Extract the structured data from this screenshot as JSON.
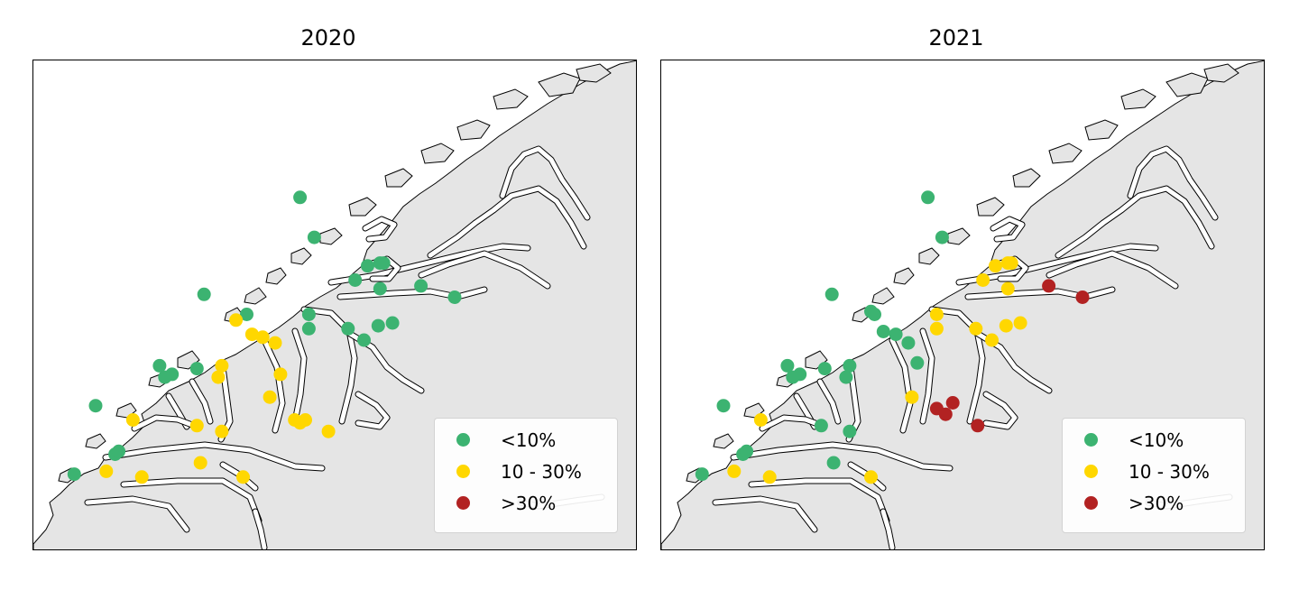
{
  "panels": [
    {
      "title": "2020",
      "sites": [
        {
          "lon": 6.4,
          "lat": 63.07,
          "class": "lt10"
        },
        {
          "lon": 6.48,
          "lat": 62.93,
          "class": "lt10"
        },
        {
          "lon": 6.78,
          "lat": 62.83,
          "class": "lt10"
        },
        {
          "lon": 6.85,
          "lat": 62.84,
          "class": "lt10"
        },
        {
          "lon": 6.87,
          "lat": 62.84,
          "class": "lt10"
        },
        {
          "lon": 6.71,
          "lat": 62.78,
          "class": "lt10"
        },
        {
          "lon": 6.85,
          "lat": 62.75,
          "class": "lt10"
        },
        {
          "lon": 7.08,
          "lat": 62.76,
          "class": "lt10"
        },
        {
          "lon": 7.27,
          "lat": 62.72,
          "class": "lt10"
        },
        {
          "lon": 5.86,
          "lat": 62.73,
          "class": "lt10"
        },
        {
          "lon": 6.1,
          "lat": 62.66,
          "class": "lt10"
        },
        {
          "lon": 6.45,
          "lat": 62.66,
          "class": "lt10"
        },
        {
          "lon": 6.45,
          "lat": 62.61,
          "class": "lt10"
        },
        {
          "lon": 6.67,
          "lat": 62.61,
          "class": "lt10"
        },
        {
          "lon": 6.76,
          "lat": 62.57,
          "class": "lt10"
        },
        {
          "lon": 6.84,
          "lat": 62.62,
          "class": "lt10"
        },
        {
          "lon": 6.92,
          "lat": 62.63,
          "class": "lt10"
        },
        {
          "lon": 5.61,
          "lat": 62.48,
          "class": "lt10"
        },
        {
          "lon": 5.68,
          "lat": 62.45,
          "class": "lt10"
        },
        {
          "lon": 5.82,
          "lat": 62.47,
          "class": "lt10"
        },
        {
          "lon": 5.64,
          "lat": 62.44,
          "class": "lt10"
        },
        {
          "lon": 5.25,
          "lat": 62.34,
          "class": "lt10"
        },
        {
          "lon": 5.36,
          "lat": 62.17,
          "class": "lt10"
        },
        {
          "lon": 5.38,
          "lat": 62.18,
          "class": "lt10"
        },
        {
          "lon": 5.13,
          "lat": 62.1,
          "class": "lt10"
        },
        {
          "lon": 6.04,
          "lat": 62.64,
          "class": "mid"
        },
        {
          "lon": 6.13,
          "lat": 62.59,
          "class": "mid"
        },
        {
          "lon": 6.19,
          "lat": 62.58,
          "class": "mid"
        },
        {
          "lon": 6.26,
          "lat": 62.56,
          "class": "mid"
        },
        {
          "lon": 5.96,
          "lat": 62.48,
          "class": "mid"
        },
        {
          "lon": 5.94,
          "lat": 62.44,
          "class": "mid"
        },
        {
          "lon": 6.29,
          "lat": 62.45,
          "class": "mid"
        },
        {
          "lon": 6.23,
          "lat": 62.37,
          "class": "mid"
        },
        {
          "lon": 6.43,
          "lat": 62.29,
          "class": "mid"
        },
        {
          "lon": 6.37,
          "lat": 62.29,
          "class": "mid"
        },
        {
          "lon": 6.4,
          "lat": 62.28,
          "class": "mid"
        },
        {
          "lon": 6.56,
          "lat": 62.25,
          "class": "mid"
        },
        {
          "lon": 5.46,
          "lat": 62.29,
          "class": "mid"
        },
        {
          "lon": 5.82,
          "lat": 62.27,
          "class": "mid"
        },
        {
          "lon": 5.96,
          "lat": 62.25,
          "class": "mid"
        },
        {
          "lon": 5.84,
          "lat": 62.14,
          "class": "mid"
        },
        {
          "lon": 5.31,
          "lat": 62.11,
          "class": "mid"
        },
        {
          "lon": 5.51,
          "lat": 62.09,
          "class": "mid"
        },
        {
          "lon": 6.08,
          "lat": 62.09,
          "class": "mid"
        }
      ]
    },
    {
      "title": "2021",
      "sites": [
        {
          "lon": 6.4,
          "lat": 63.07,
          "class": "lt10"
        },
        {
          "lon": 6.48,
          "lat": 62.93,
          "class": "lt10"
        },
        {
          "lon": 5.86,
          "lat": 62.73,
          "class": "lt10"
        },
        {
          "lon": 6.08,
          "lat": 62.67,
          "class": "lt10"
        },
        {
          "lon": 6.1,
          "lat": 62.66,
          "class": "lt10"
        },
        {
          "lon": 6.15,
          "lat": 62.6,
          "class": "lt10"
        },
        {
          "lon": 6.22,
          "lat": 62.59,
          "class": "lt10"
        },
        {
          "lon": 6.29,
          "lat": 62.56,
          "class": "lt10"
        },
        {
          "lon": 6.34,
          "lat": 62.49,
          "class": "lt10"
        },
        {
          "lon": 5.96,
          "lat": 62.48,
          "class": "lt10"
        },
        {
          "lon": 5.94,
          "lat": 62.44,
          "class": "lt10"
        },
        {
          "lon": 5.61,
          "lat": 62.48,
          "class": "lt10"
        },
        {
          "lon": 5.68,
          "lat": 62.45,
          "class": "lt10"
        },
        {
          "lon": 5.82,
          "lat": 62.47,
          "class": "lt10"
        },
        {
          "lon": 5.64,
          "lat": 62.44,
          "class": "lt10"
        },
        {
          "lon": 5.8,
          "lat": 62.27,
          "class": "lt10"
        },
        {
          "lon": 5.96,
          "lat": 62.25,
          "class": "lt10"
        },
        {
          "lon": 5.87,
          "lat": 62.14,
          "class": "lt10"
        },
        {
          "lon": 5.25,
          "lat": 62.34,
          "class": "lt10"
        },
        {
          "lon": 5.36,
          "lat": 62.17,
          "class": "lt10"
        },
        {
          "lon": 5.38,
          "lat": 62.18,
          "class": "lt10"
        },
        {
          "lon": 5.13,
          "lat": 62.1,
          "class": "lt10"
        },
        {
          "lon": 6.78,
          "lat": 62.83,
          "class": "mid"
        },
        {
          "lon": 6.85,
          "lat": 62.84,
          "class": "mid"
        },
        {
          "lon": 6.87,
          "lat": 62.84,
          "class": "mid"
        },
        {
          "lon": 6.71,
          "lat": 62.78,
          "class": "mid"
        },
        {
          "lon": 6.85,
          "lat": 62.75,
          "class": "mid"
        },
        {
          "lon": 6.45,
          "lat": 62.66,
          "class": "mid"
        },
        {
          "lon": 6.45,
          "lat": 62.61,
          "class": "mid"
        },
        {
          "lon": 6.67,
          "lat": 62.61,
          "class": "mid"
        },
        {
          "lon": 6.76,
          "lat": 62.57,
          "class": "mid"
        },
        {
          "lon": 6.84,
          "lat": 62.62,
          "class": "mid"
        },
        {
          "lon": 6.92,
          "lat": 62.63,
          "class": "mid"
        },
        {
          "lon": 6.31,
          "lat": 62.37,
          "class": "mid"
        },
        {
          "lon": 5.46,
          "lat": 62.29,
          "class": "mid"
        },
        {
          "lon": 5.51,
          "lat": 62.09,
          "class": "mid"
        },
        {
          "lon": 5.31,
          "lat": 62.11,
          "class": "mid"
        },
        {
          "lon": 6.08,
          "lat": 62.09,
          "class": "mid"
        },
        {
          "lon": 7.08,
          "lat": 62.76,
          "class": "gt30"
        },
        {
          "lon": 7.27,
          "lat": 62.72,
          "class": "gt30"
        },
        {
          "lon": 6.45,
          "lat": 62.33,
          "class": "gt30"
        },
        {
          "lon": 6.5,
          "lat": 62.31,
          "class": "gt30"
        },
        {
          "lon": 6.54,
          "lat": 62.35,
          "class": "gt30"
        },
        {
          "lon": 6.68,
          "lat": 62.27,
          "class": "gt30"
        }
      ]
    }
  ],
  "legend": [
    {
      "key": "lt10",
      "label": "<10%",
      "color": "#3cb371"
    },
    {
      "key": "mid",
      "label": "10 - 30%",
      "color": "#ffd700"
    },
    {
      "key": "gt30",
      "label": ">30%",
      "color": "#b22222"
    }
  ],
  "colors": {
    "land": "#e5e5e5",
    "water": "#ffffff",
    "coastline": "#000000",
    "lt10": "#3cb371",
    "mid": "#ffd700",
    "gt30": "#b22222"
  },
  "extent": {
    "lon": [
      4.9,
      8.3
    ],
    "lat": [
      61.83,
      63.55
    ]
  }
}
